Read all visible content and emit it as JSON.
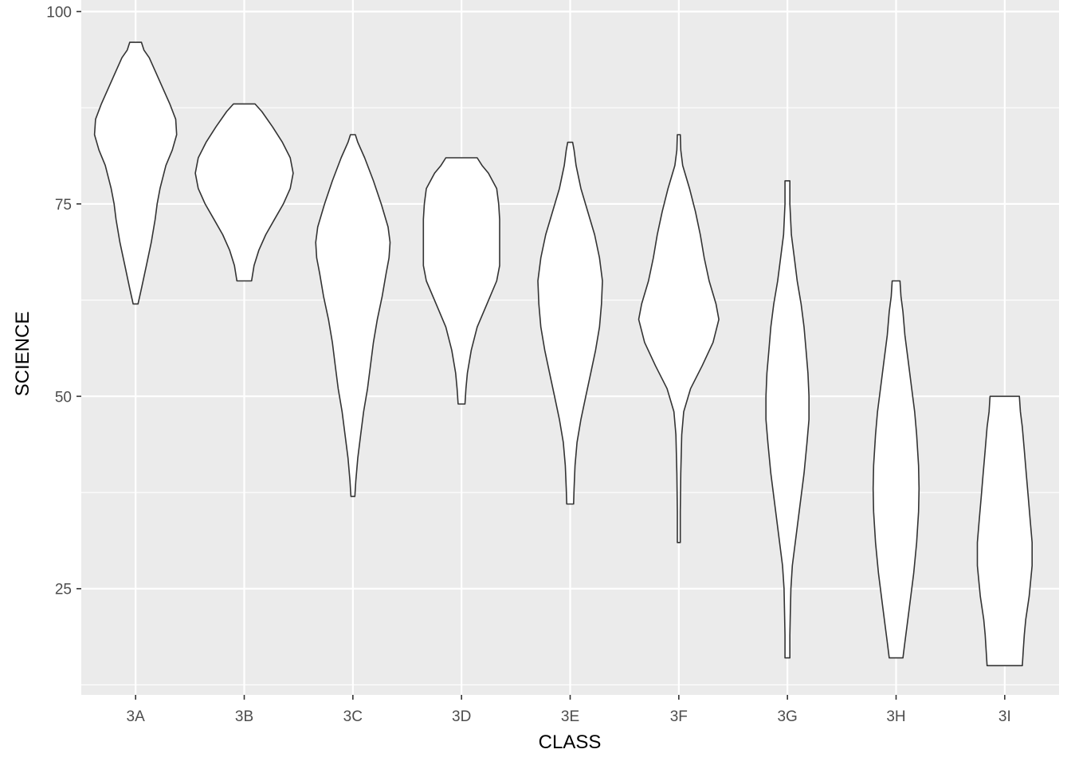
{
  "chart_data": {
    "type": "violin",
    "xlabel": "CLASS",
    "ylabel": "SCIENCE",
    "ylim": [
      11.2,
      101.5
    ],
    "y_ticks": [
      25,
      50,
      75,
      100
    ],
    "categories": [
      "3A",
      "3B",
      "3C",
      "3D",
      "3E",
      "3F",
      "3G",
      "3H",
      "3I"
    ],
    "violins": [
      {
        "category": "3A",
        "min": 62,
        "max": 96,
        "profile": [
          [
            62,
            0.05
          ],
          [
            64,
            0.12
          ],
          [
            67,
            0.22
          ],
          [
            70,
            0.32
          ],
          [
            73,
            0.4
          ],
          [
            75,
            0.44
          ],
          [
            77,
            0.5
          ],
          [
            80,
            0.62
          ],
          [
            82,
            0.75
          ],
          [
            84,
            0.84
          ],
          [
            86,
            0.82
          ],
          [
            88,
            0.7
          ],
          [
            90,
            0.56
          ],
          [
            92,
            0.42
          ],
          [
            94,
            0.28
          ],
          [
            95,
            0.17
          ],
          [
            96,
            0.12
          ]
        ]
      },
      {
        "category": "3B",
        "min": 65,
        "max": 88,
        "profile": [
          [
            65,
            0.15
          ],
          [
            67,
            0.2
          ],
          [
            69,
            0.3
          ],
          [
            71,
            0.44
          ],
          [
            73,
            0.62
          ],
          [
            75,
            0.8
          ],
          [
            77,
            0.94
          ],
          [
            79,
            1.0
          ],
          [
            81,
            0.94
          ],
          [
            83,
            0.78
          ],
          [
            85,
            0.58
          ],
          [
            87,
            0.36
          ],
          [
            88,
            0.22
          ]
        ]
      },
      {
        "category": "3C",
        "min": 37,
        "max": 84,
        "profile": [
          [
            37,
            0.04
          ],
          [
            39,
            0.06
          ],
          [
            42,
            0.1
          ],
          [
            45,
            0.16
          ],
          [
            48,
            0.22
          ],
          [
            51,
            0.3
          ],
          [
            54,
            0.36
          ],
          [
            57,
            0.42
          ],
          [
            60,
            0.5
          ],
          [
            63,
            0.6
          ],
          [
            66,
            0.68
          ],
          [
            68,
            0.74
          ],
          [
            70,
            0.76
          ],
          [
            72,
            0.72
          ],
          [
            75,
            0.58
          ],
          [
            78,
            0.42
          ],
          [
            81,
            0.24
          ],
          [
            83,
            0.1
          ],
          [
            84,
            0.05
          ]
        ]
      },
      {
        "category": "3D",
        "min": 49,
        "max": 81,
        "profile": [
          [
            49,
            0.07
          ],
          [
            51,
            0.09
          ],
          [
            53,
            0.12
          ],
          [
            56,
            0.2
          ],
          [
            59,
            0.32
          ],
          [
            62,
            0.52
          ],
          [
            65,
            0.72
          ],
          [
            67,
            0.78
          ],
          [
            70,
            0.78
          ],
          [
            73,
            0.78
          ],
          [
            75,
            0.76
          ],
          [
            77,
            0.72
          ],
          [
            79,
            0.55
          ],
          [
            80,
            0.42
          ],
          [
            81,
            0.32
          ]
        ]
      },
      {
        "category": "3E",
        "min": 36,
        "max": 83,
        "profile": [
          [
            36,
            0.07
          ],
          [
            38,
            0.08
          ],
          [
            41,
            0.1
          ],
          [
            44,
            0.14
          ],
          [
            47,
            0.22
          ],
          [
            50,
            0.32
          ],
          [
            53,
            0.42
          ],
          [
            56,
            0.52
          ],
          [
            59,
            0.6
          ],
          [
            62,
            0.64
          ],
          [
            65,
            0.66
          ],
          [
            68,
            0.6
          ],
          [
            71,
            0.5
          ],
          [
            74,
            0.36
          ],
          [
            77,
            0.22
          ],
          [
            80,
            0.12
          ],
          [
            82,
            0.08
          ],
          [
            83,
            0.05
          ]
        ]
      },
      {
        "category": "3F",
        "min": 31,
        "max": 84,
        "profile": [
          [
            31,
            0.03
          ],
          [
            35,
            0.03
          ],
          [
            40,
            0.04
          ],
          [
            45,
            0.06
          ],
          [
            48,
            0.1
          ],
          [
            51,
            0.24
          ],
          [
            54,
            0.48
          ],
          [
            57,
            0.7
          ],
          [
            60,
            0.82
          ],
          [
            62,
            0.76
          ],
          [
            65,
            0.62
          ],
          [
            68,
            0.52
          ],
          [
            71,
            0.44
          ],
          [
            74,
            0.34
          ],
          [
            77,
            0.22
          ],
          [
            80,
            0.08
          ],
          [
            82,
            0.04
          ],
          [
            84,
            0.03
          ]
        ]
      },
      {
        "category": "3G",
        "min": 16,
        "max": 78,
        "profile": [
          [
            16,
            0.05
          ],
          [
            19,
            0.05
          ],
          [
            22,
            0.06
          ],
          [
            25,
            0.07
          ],
          [
            28,
            0.1
          ],
          [
            32,
            0.18
          ],
          [
            36,
            0.26
          ],
          [
            40,
            0.34
          ],
          [
            44,
            0.4
          ],
          [
            47,
            0.44
          ],
          [
            50,
            0.44
          ],
          [
            53,
            0.42
          ],
          [
            56,
            0.38
          ],
          [
            59,
            0.34
          ],
          [
            62,
            0.28
          ],
          [
            65,
            0.2
          ],
          [
            68,
            0.14
          ],
          [
            71,
            0.08
          ],
          [
            75,
            0.05
          ],
          [
            78,
            0.05
          ]
        ]
      },
      {
        "category": "3H",
        "min": 16,
        "max": 65,
        "profile": [
          [
            16,
            0.14
          ],
          [
            18,
            0.18
          ],
          [
            20,
            0.22
          ],
          [
            23,
            0.28
          ],
          [
            27,
            0.36
          ],
          [
            31,
            0.42
          ],
          [
            35,
            0.46
          ],
          [
            38,
            0.47
          ],
          [
            41,
            0.46
          ],
          [
            45,
            0.42
          ],
          [
            48,
            0.38
          ],
          [
            51,
            0.32
          ],
          [
            55,
            0.24
          ],
          [
            58,
            0.18
          ],
          [
            61,
            0.14
          ],
          [
            63,
            0.1
          ],
          [
            65,
            0.08
          ]
        ]
      },
      {
        "category": "3I",
        "min": 15,
        "max": 50,
        "profile": [
          [
            15,
            0.36
          ],
          [
            17,
            0.38
          ],
          [
            19,
            0.4
          ],
          [
            21,
            0.43
          ],
          [
            24,
            0.5
          ],
          [
            28,
            0.56
          ],
          [
            31,
            0.56
          ],
          [
            34,
            0.52
          ],
          [
            37,
            0.48
          ],
          [
            40,
            0.44
          ],
          [
            43,
            0.4
          ],
          [
            46,
            0.36
          ],
          [
            48,
            0.32
          ],
          [
            50,
            0.3
          ]
        ]
      }
    ],
    "grid": true,
    "colors": {
      "panel_bg": "#ebebeb",
      "gridline": "#ffffff",
      "violin_fill": "#ffffff",
      "violin_stroke": "#333333"
    }
  }
}
